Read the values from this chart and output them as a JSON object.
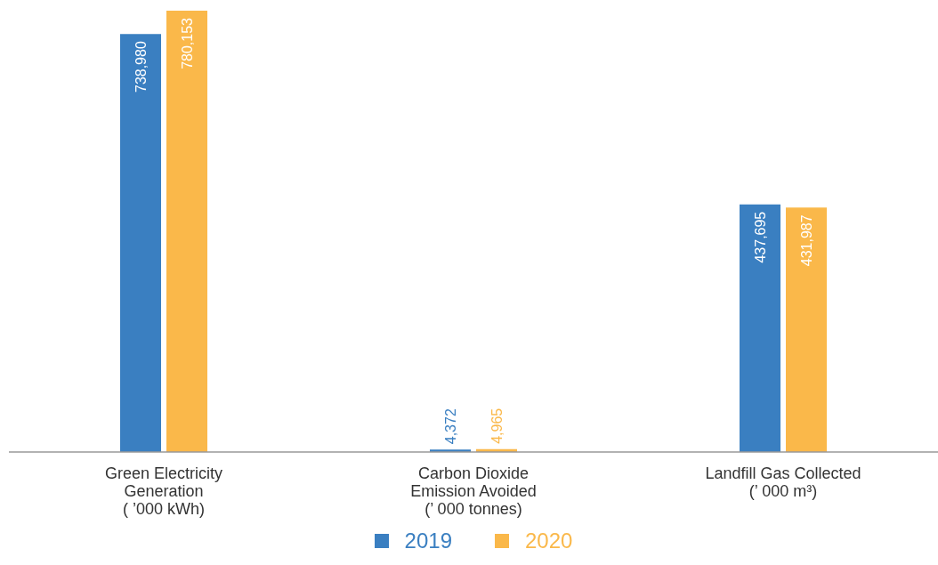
{
  "chart_data": {
    "type": "bar",
    "categories": [
      "Green Electricity\nGeneration\n( ’000 kWh)",
      "Carbon Dioxide\nEmission Avoided\n(’ 000 tonnes)",
      "Landfill Gas Collected\n(’ 000 m³)"
    ],
    "series": [
      {
        "name": "2019",
        "color": "#3a7fc1",
        "values": [
          738980,
          4372,
          437695
        ],
        "value_labels": [
          "738,980",
          "4,372",
          "437,695"
        ]
      },
      {
        "name": "2020",
        "color": "#fab84a",
        "values": [
          780153,
          4965,
          431987
        ],
        "value_labels": [
          "780,153",
          "4,965",
          "431,987"
        ]
      }
    ],
    "legend": "bottom",
    "grid": false
  }
}
